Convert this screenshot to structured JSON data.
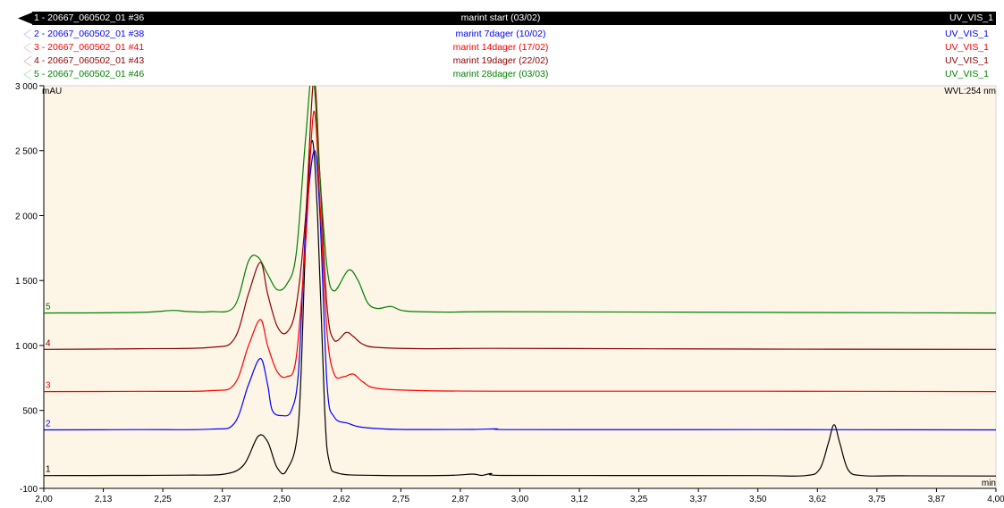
{
  "legend": [
    {
      "label": "1 - 20667_060502_01 #36",
      "name": "marint start (03/02)",
      "signal": "UV_VIS_1",
      "color": "#000000",
      "selected": true
    },
    {
      "label": "2 - 20667_060502_01 #38",
      "name": "marint 7dager (10/02)",
      "signal": "UV_VIS_1",
      "color": "#0000ff",
      "selected": false
    },
    {
      "label": "3 - 20667_060502_01 #41",
      "name": "marint 14dager (17/02)",
      "signal": "UV_VIS_1",
      "color": "#ff0000",
      "selected": false
    },
    {
      "label": "4 - 20667_060502_01 #43",
      "name": "marint 19dager (22/02)",
      "signal": "UV_VIS_1",
      "color": "#8b0000",
      "selected": false
    },
    {
      "label": "5 - 20667_060502_01 #46",
      "name": "marint 28dager (03/03)",
      "signal": "UV_VIS_1",
      "color": "#008000",
      "selected": false
    }
  ],
  "plot": {
    "background": "#fdf5e6",
    "y_unit": "mAU",
    "x_unit": "min",
    "wavelength": "WVL:254 nm"
  },
  "chart_data": {
    "type": "line",
    "xlabel": "min",
    "ylabel": "mAU",
    "xlim": [
      2.0,
      4.0
    ],
    "ylim": [
      -100,
      3000
    ],
    "x_ticks": [
      {
        "value": 2.0,
        "label": "2,00"
      },
      {
        "value": 2.125,
        "label": "2,13"
      },
      {
        "value": 2.25,
        "label": "2,25"
      },
      {
        "value": 2.375,
        "label": "2,37"
      },
      {
        "value": 2.5,
        "label": "2,50"
      },
      {
        "value": 2.625,
        "label": "2,62"
      },
      {
        "value": 2.75,
        "label": "2,75"
      },
      {
        "value": 2.875,
        "label": "2,87"
      },
      {
        "value": 3.0,
        "label": "3,00"
      },
      {
        "value": 3.125,
        "label": "3,12"
      },
      {
        "value": 3.25,
        "label": "3,25"
      },
      {
        "value": 3.375,
        "label": "3,37"
      },
      {
        "value": 3.5,
        "label": "3,50"
      },
      {
        "value": 3.625,
        "label": "3,62"
      },
      {
        "value": 3.75,
        "label": "3,75"
      },
      {
        "value": 3.875,
        "label": "3,87"
      },
      {
        "value": 4.0,
        "label": "4,00"
      }
    ],
    "y_ticks": [
      {
        "value": -100,
        "label": "-100"
      },
      {
        "value": 500,
        "label": "500"
      },
      {
        "value": 1000,
        "label": "1 000"
      },
      {
        "value": 1500,
        "label": "1 500"
      },
      {
        "value": 2000,
        "label": "2 000"
      },
      {
        "value": 2500,
        "label": "2 500"
      },
      {
        "value": 3000,
        "label": "3 000"
      }
    ],
    "series": [
      {
        "name": "1",
        "color": "#000000",
        "points": [
          [
            2.0,
            -2
          ],
          [
            2.1,
            -1
          ],
          [
            2.2,
            0
          ],
          [
            2.3,
            2
          ],
          [
            2.38,
            10
          ],
          [
            2.42,
            80
          ],
          [
            2.45,
            300
          ],
          [
            2.47,
            260
          ],
          [
            2.49,
            60
          ],
          [
            2.51,
            40
          ],
          [
            2.535,
            400
          ],
          [
            2.55,
            1800
          ],
          [
            2.563,
            2575
          ],
          [
            2.575,
            2000
          ],
          [
            2.59,
            500
          ],
          [
            2.6,
            100
          ],
          [
            2.62,
            15
          ],
          [
            2.7,
            0
          ],
          [
            2.85,
            0
          ],
          [
            2.9,
            10
          ],
          [
            2.92,
            0
          ],
          [
            2.94,
            14
          ],
          [
            2.96,
            0
          ],
          [
            3.2,
            -1
          ],
          [
            3.5,
            -2
          ],
          [
            3.6,
            -2
          ],
          [
            3.63,
            50
          ],
          [
            3.648,
            250
          ],
          [
            3.66,
            390
          ],
          [
            3.672,
            250
          ],
          [
            3.69,
            40
          ],
          [
            3.72,
            -2
          ],
          [
            3.8,
            -3
          ],
          [
            4.0,
            -5
          ]
        ]
      },
      {
        "name": "2",
        "color": "#0000ff",
        "points": [
          [
            2.0,
            350
          ],
          [
            2.2,
            352
          ],
          [
            2.35,
            356
          ],
          [
            2.4,
            400
          ],
          [
            2.43,
            700
          ],
          [
            2.455,
            900
          ],
          [
            2.47,
            700
          ],
          [
            2.48,
            500
          ],
          [
            2.5,
            460
          ],
          [
            2.52,
            500
          ],
          [
            2.535,
            800
          ],
          [
            2.55,
            1900
          ],
          [
            2.568,
            2500
          ],
          [
            2.58,
            2000
          ],
          [
            2.595,
            700
          ],
          [
            2.61,
            450
          ],
          [
            2.64,
            400
          ],
          [
            2.67,
            370
          ],
          [
            2.75,
            354
          ],
          [
            2.9,
            354
          ],
          [
            2.95,
            358
          ],
          [
            3.0,
            352
          ],
          [
            3.5,
            352
          ],
          [
            4.0,
            350
          ]
        ]
      },
      {
        "name": "3",
        "color": "#ff0000",
        "points": [
          [
            2.0,
            645
          ],
          [
            2.2,
            647
          ],
          [
            2.35,
            652
          ],
          [
            2.4,
            700
          ],
          [
            2.43,
            1000
          ],
          [
            2.455,
            1200
          ],
          [
            2.47,
            1000
          ],
          [
            2.49,
            800
          ],
          [
            2.51,
            760
          ],
          [
            2.53,
            900
          ],
          [
            2.55,
            1800
          ],
          [
            2.567,
            2800
          ],
          [
            2.58,
            2100
          ],
          [
            2.595,
            1100
          ],
          [
            2.61,
            780
          ],
          [
            2.63,
            760
          ],
          [
            2.65,
            780
          ],
          [
            2.67,
            720
          ],
          [
            2.7,
            670
          ],
          [
            2.8,
            652
          ],
          [
            3.0,
            648
          ],
          [
            3.5,
            648
          ],
          [
            4.0,
            645
          ]
        ]
      },
      {
        "name": "4",
        "color": "#8b0000",
        "points": [
          [
            2.0,
            970
          ],
          [
            2.2,
            975
          ],
          [
            2.35,
            985
          ],
          [
            2.4,
            1050
          ],
          [
            2.43,
            1400
          ],
          [
            2.455,
            1640
          ],
          [
            2.47,
            1400
          ],
          [
            2.49,
            1150
          ],
          [
            2.51,
            1100
          ],
          [
            2.53,
            1300
          ],
          [
            2.55,
            2000
          ],
          [
            2.567,
            3050
          ],
          [
            2.58,
            2300
          ],
          [
            2.595,
            1300
          ],
          [
            2.61,
            1040
          ],
          [
            2.635,
            1100
          ],
          [
            2.65,
            1070
          ],
          [
            2.67,
            1010
          ],
          [
            2.7,
            985
          ],
          [
            2.8,
            975
          ],
          [
            2.95,
            978
          ],
          [
            3.5,
            972
          ],
          [
            4.0,
            970
          ]
        ]
      },
      {
        "name": "5",
        "color": "#008000",
        "points": [
          [
            2.0,
            1250
          ],
          [
            2.2,
            1255
          ],
          [
            2.27,
            1270
          ],
          [
            2.3,
            1262
          ],
          [
            2.35,
            1260
          ],
          [
            2.4,
            1300
          ],
          [
            2.43,
            1650
          ],
          [
            2.45,
            1680
          ],
          [
            2.47,
            1550
          ],
          [
            2.49,
            1430
          ],
          [
            2.51,
            1470
          ],
          [
            2.53,
            1700
          ],
          [
            2.55,
            2600
          ],
          [
            2.565,
            3100
          ],
          [
            2.58,
            2300
          ],
          [
            2.595,
            1600
          ],
          [
            2.61,
            1420
          ],
          [
            2.64,
            1580
          ],
          [
            2.66,
            1500
          ],
          [
            2.68,
            1330
          ],
          [
            2.7,
            1285
          ],
          [
            2.73,
            1300
          ],
          [
            2.76,
            1265
          ],
          [
            2.85,
            1257
          ],
          [
            2.95,
            1260
          ],
          [
            3.5,
            1255
          ],
          [
            4.0,
            1250
          ]
        ]
      }
    ]
  }
}
